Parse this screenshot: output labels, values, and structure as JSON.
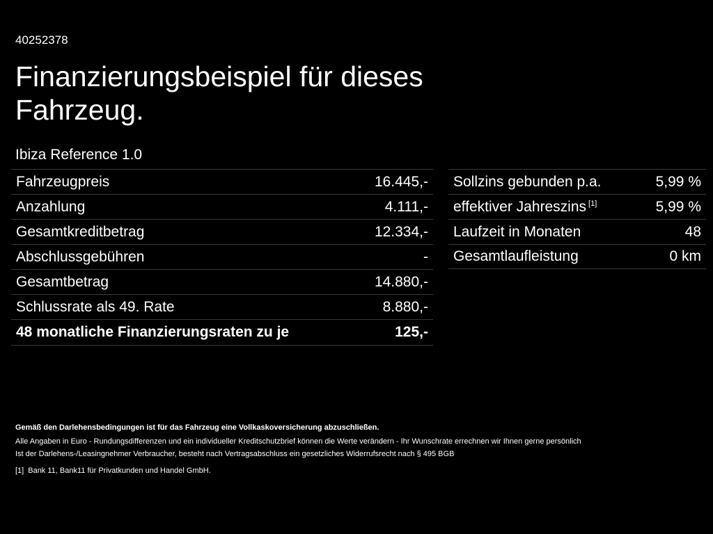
{
  "page_id": "40252378",
  "title": "Finanzierungsbeispiel für dieses Fahrzeug.",
  "model": "Ibiza Reference 1.0",
  "left_table": {
    "rows": [
      {
        "label": "Fahrzeugpreis",
        "value": "16.445,-"
      },
      {
        "label": "Anzahlung",
        "value": "4.111,-"
      },
      {
        "label": "Gesamtkreditbetrag",
        "value": "12.334,-"
      },
      {
        "label": "Abschlussgebühren",
        "value": "-"
      },
      {
        "label": "Gesamtbetrag",
        "value": "14.880,-"
      },
      {
        "label": "Schlussrate als 49. Rate",
        "value": "8.880,-"
      },
      {
        "label": "48 monatliche Finanzierungsraten zu je",
        "value": "125,-"
      }
    ]
  },
  "right_table": {
    "rows": [
      {
        "label": "Sollzins gebunden p.a.",
        "value": "5,99 %"
      },
      {
        "label": "effektiver Jahreszins",
        "footnote": "[1]",
        "value": "5,99 %"
      },
      {
        "label": "Laufzeit in Monaten",
        "value": "48"
      },
      {
        "label": "Gesamtlaufleistung",
        "value": "0 km"
      }
    ]
  },
  "footer": {
    "bold_note": "Gemäß den Darlehensbedingungen ist für das Fahrzeug eine Vollkaskoversicherung abzuschließen.",
    "line1": "Alle Angaben in Euro - Rundungsdifferenzen und ein individueller Kreditschutzbrief können die Werte verändern - Ihr Wunschrate errechnen wir Ihnen gerne persönlich",
    "line2": "Ist der Darlehens-/Leasingnehmer Verbraucher, besteht nach Vertragsabschluss ein gesetzliches Widerrufsrecht nach § 495 BGB",
    "footnote_marker": "[1]",
    "footnote_text": "Bank 11, Bank11 für Privatkunden und Handel GmbH."
  },
  "colors": {
    "background": "#000000",
    "text": "#ffffff",
    "divider": "#3a3a3a"
  }
}
